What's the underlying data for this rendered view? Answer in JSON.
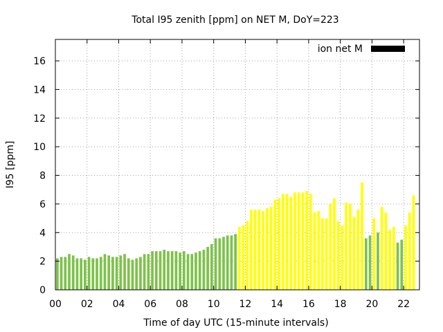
{
  "chart_data": {
    "type": "bar",
    "title": "Total I95 zenith [ppm] on NET M, DoY=223",
    "xlabel": "Time of day UTC (15-minute intervals)",
    "ylabel": "I95 [ppm]",
    "xlim": [
      0,
      23
    ],
    "ylim": [
      0,
      17.5
    ],
    "x_ticks": [
      "00",
      "02",
      "04",
      "06",
      "08",
      "10",
      "12",
      "14",
      "16",
      "18",
      "20",
      "22"
    ],
    "y_ticks": [
      "0",
      "2",
      "4",
      "6",
      "8",
      "10",
      "12",
      "14",
      "16"
    ],
    "grid": true,
    "legend": {
      "position": "top-right",
      "entries": [
        {
          "label": "ion net M",
          "color": "#000000"
        }
      ]
    },
    "colors": {
      "low": "#7ec24a",
      "high": "#ffff00"
    },
    "threshold": 4,
    "bin_hours": 0.25,
    "values": [
      2.2,
      2.3,
      2.3,
      2.5,
      2.4,
      2.2,
      2.2,
      2.1,
      2.3,
      2.2,
      2.2,
      2.3,
      2.5,
      2.4,
      2.3,
      2.3,
      2.4,
      2.5,
      2.2,
      2.1,
      2.2,
      2.3,
      2.5,
      2.5,
      2.7,
      2.7,
      2.7,
      2.8,
      2.7,
      2.7,
      2.7,
      2.6,
      2.7,
      2.5,
      2.5,
      2.6,
      2.7,
      2.8,
      3.0,
      3.2,
      3.6,
      3.6,
      3.7,
      3.8,
      3.8,
      3.9,
      4.4,
      4.5,
      4.8,
      5.6,
      5.6,
      5.6,
      5.5,
      5.7,
      5.8,
      6.3,
      6.4,
      6.7,
      6.7,
      6.5,
      6.8,
      6.8,
      6.8,
      6.9,
      6.7,
      5.4,
      5.5,
      5.0,
      5.0,
      6.0,
      6.4,
      4.8,
      4.5,
      6.1,
      6.0,
      5.1,
      5.6,
      7.5,
      3.6,
      3.8,
      5.0,
      4.0,
      5.8,
      5.4,
      4.2,
      4.4,
      3.3,
      3.5,
      4.5,
      5.4,
      6.6
    ],
    "colors_per_bar": [
      "g",
      "g",
      "g",
      "g",
      "g",
      "g",
      "g",
      "g",
      "g",
      "g",
      "g",
      "g",
      "g",
      "g",
      "g",
      "g",
      "g",
      "g",
      "g",
      "g",
      "g",
      "g",
      "g",
      "g",
      "g",
      "g",
      "g",
      "g",
      "g",
      "g",
      "g",
      "g",
      "g",
      "g",
      "g",
      "g",
      "g",
      "g",
      "g",
      "g",
      "g",
      "g",
      "g",
      "g",
      "g",
      "g",
      "y",
      "y",
      "y",
      "y",
      "y",
      "y",
      "y",
      "y",
      "y",
      "y",
      "y",
      "y",
      "y",
      "y",
      "y",
      "y",
      "y",
      "y",
      "y",
      "y",
      "y",
      "y",
      "y",
      "y",
      "y",
      "y",
      "y",
      "y",
      "y",
      "y",
      "y",
      "y",
      "g",
      "g",
      "y",
      "g",
      "y",
      "y",
      "y",
      "y",
      "g",
      "g",
      "y",
      "y",
      "y"
    ]
  }
}
